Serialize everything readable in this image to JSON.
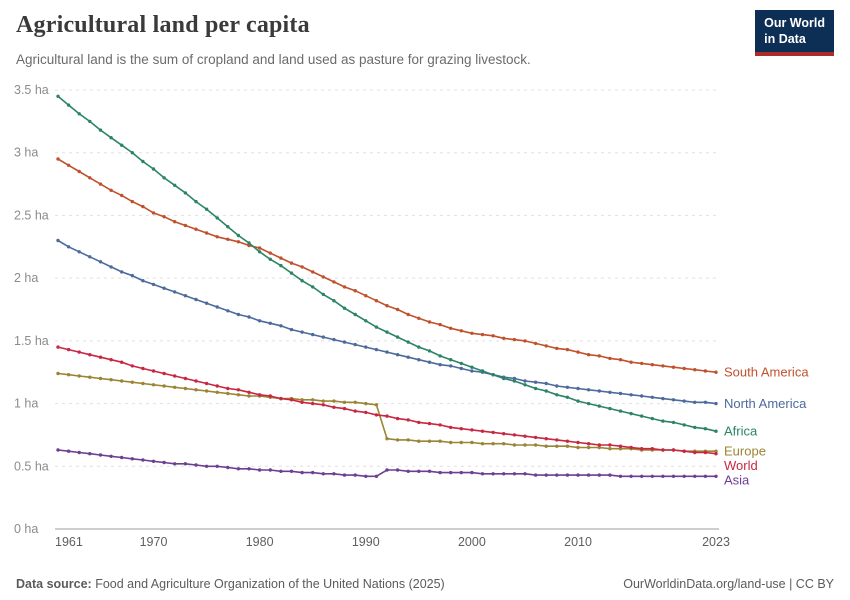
{
  "header": {
    "title": "Agricultural land per capita",
    "subtitle": "Agricultural land is the sum of cropland and land used as pasture for grazing livestock.",
    "logo": {
      "line1": "Our World",
      "line2": "in Data",
      "bg_color": "#0d2e55",
      "accent_color": "#a92e28"
    }
  },
  "footer": {
    "source_label": "Data source:",
    "source_text": " Food and Agriculture Organization of the United Nations (2025)",
    "credit": "OurWorldinData.org/land-use | CC BY"
  },
  "chart_data": {
    "type": "line",
    "title": "Agricultural land per capita",
    "unit": "ha",
    "ylim": [
      0,
      3.5
    ],
    "grid": "horizontal dashed",
    "legend_position": "right-end-labels",
    "x_ticks": [
      1961,
      1970,
      1980,
      1990,
      2000,
      2010,
      2023
    ],
    "y_ticks": [
      {
        "value": 0,
        "label": "0 ha"
      },
      {
        "value": 0.5,
        "label": "0.5 ha"
      },
      {
        "value": 1,
        "label": "1 ha"
      },
      {
        "value": 1.5,
        "label": "1.5 ha"
      },
      {
        "value": 2,
        "label": "2 ha"
      },
      {
        "value": 2.5,
        "label": "2.5 ha"
      },
      {
        "value": 3,
        "label": "3 ha"
      },
      {
        "value": 3.5,
        "label": "3.5 ha"
      }
    ],
    "x": [
      1961,
      1962,
      1963,
      1964,
      1965,
      1966,
      1967,
      1968,
      1969,
      1970,
      1971,
      1972,
      1973,
      1974,
      1975,
      1976,
      1977,
      1978,
      1979,
      1980,
      1981,
      1982,
      1983,
      1984,
      1985,
      1986,
      1987,
      1988,
      1989,
      1990,
      1991,
      1992,
      1993,
      1994,
      1995,
      1996,
      1997,
      1998,
      1999,
      2000,
      2001,
      2002,
      2003,
      2004,
      2005,
      2006,
      2007,
      2008,
      2009,
      2010,
      2011,
      2012,
      2013,
      2014,
      2015,
      2016,
      2017,
      2018,
      2019,
      2020,
      2021,
      2022,
      2023
    ],
    "series": [
      {
        "name": "South America",
        "color": "#C0512C",
        "values": [
          2.95,
          2.9,
          2.85,
          2.8,
          2.75,
          2.7,
          2.66,
          2.61,
          2.57,
          2.52,
          2.49,
          2.45,
          2.42,
          2.39,
          2.36,
          2.33,
          2.31,
          2.29,
          2.26,
          2.24,
          2.2,
          2.16,
          2.12,
          2.09,
          2.05,
          2.01,
          1.97,
          1.93,
          1.9,
          1.86,
          1.82,
          1.78,
          1.75,
          1.71,
          1.68,
          1.65,
          1.63,
          1.6,
          1.58,
          1.56,
          1.55,
          1.54,
          1.52,
          1.51,
          1.5,
          1.48,
          1.46,
          1.44,
          1.43,
          1.41,
          1.39,
          1.38,
          1.36,
          1.35,
          1.33,
          1.32,
          1.31,
          1.3,
          1.29,
          1.28,
          1.27,
          1.26,
          1.25
        ]
      },
      {
        "name": "North America",
        "color": "#4C6A9C",
        "values": [
          2.3,
          2.25,
          2.21,
          2.17,
          2.13,
          2.09,
          2.05,
          2.02,
          1.98,
          1.95,
          1.92,
          1.89,
          1.86,
          1.83,
          1.8,
          1.77,
          1.74,
          1.71,
          1.69,
          1.66,
          1.64,
          1.62,
          1.59,
          1.57,
          1.55,
          1.53,
          1.51,
          1.49,
          1.47,
          1.45,
          1.43,
          1.41,
          1.39,
          1.37,
          1.35,
          1.33,
          1.31,
          1.3,
          1.28,
          1.26,
          1.25,
          1.23,
          1.21,
          1.2,
          1.18,
          1.17,
          1.16,
          1.14,
          1.13,
          1.12,
          1.11,
          1.1,
          1.09,
          1.08,
          1.07,
          1.06,
          1.05,
          1.04,
          1.03,
          1.02,
          1.01,
          1.01,
          1.0
        ]
      },
      {
        "name": "Africa",
        "color": "#2C8465",
        "values": [
          3.45,
          3.38,
          3.31,
          3.25,
          3.18,
          3.12,
          3.06,
          3.0,
          2.93,
          2.87,
          2.8,
          2.74,
          2.68,
          2.61,
          2.55,
          2.48,
          2.41,
          2.34,
          2.28,
          2.21,
          2.15,
          2.1,
          2.04,
          1.98,
          1.93,
          1.87,
          1.82,
          1.76,
          1.71,
          1.66,
          1.61,
          1.57,
          1.53,
          1.49,
          1.45,
          1.42,
          1.38,
          1.35,
          1.32,
          1.29,
          1.26,
          1.23,
          1.2,
          1.18,
          1.15,
          1.12,
          1.1,
          1.07,
          1.05,
          1.02,
          1.0,
          0.98,
          0.96,
          0.94,
          0.92,
          0.9,
          0.88,
          0.86,
          0.85,
          0.83,
          0.81,
          0.8,
          0.78
        ]
      },
      {
        "name": "Europe",
        "color": "#9B8434",
        "values": [
          1.24,
          1.23,
          1.22,
          1.21,
          1.2,
          1.19,
          1.18,
          1.17,
          1.16,
          1.15,
          1.14,
          1.13,
          1.12,
          1.11,
          1.1,
          1.09,
          1.08,
          1.07,
          1.06,
          1.06,
          1.05,
          1.04,
          1.04,
          1.03,
          1.03,
          1.02,
          1.02,
          1.01,
          1.01,
          1.0,
          0.99,
          0.72,
          0.71,
          0.71,
          0.7,
          0.7,
          0.7,
          0.69,
          0.69,
          0.69,
          0.68,
          0.68,
          0.68,
          0.67,
          0.67,
          0.67,
          0.66,
          0.66,
          0.66,
          0.65,
          0.65,
          0.65,
          0.64,
          0.64,
          0.64,
          0.63,
          0.63,
          0.63,
          0.63,
          0.62,
          0.62,
          0.62,
          0.62
        ]
      },
      {
        "name": "World",
        "color": "#C82741",
        "values": [
          1.45,
          1.43,
          1.41,
          1.39,
          1.37,
          1.35,
          1.33,
          1.3,
          1.28,
          1.26,
          1.24,
          1.22,
          1.2,
          1.18,
          1.16,
          1.14,
          1.12,
          1.11,
          1.09,
          1.07,
          1.06,
          1.04,
          1.03,
          1.01,
          1.0,
          0.99,
          0.97,
          0.96,
          0.94,
          0.93,
          0.91,
          0.9,
          0.88,
          0.87,
          0.85,
          0.84,
          0.83,
          0.81,
          0.8,
          0.79,
          0.78,
          0.77,
          0.76,
          0.75,
          0.74,
          0.73,
          0.72,
          0.71,
          0.7,
          0.69,
          0.68,
          0.67,
          0.67,
          0.66,
          0.65,
          0.64,
          0.64,
          0.63,
          0.63,
          0.62,
          0.61,
          0.61,
          0.6
        ]
      },
      {
        "name": "Asia",
        "color": "#6D3E91",
        "values": [
          0.63,
          0.62,
          0.61,
          0.6,
          0.59,
          0.58,
          0.57,
          0.56,
          0.55,
          0.54,
          0.53,
          0.52,
          0.52,
          0.51,
          0.5,
          0.5,
          0.49,
          0.48,
          0.48,
          0.47,
          0.47,
          0.46,
          0.46,
          0.45,
          0.45,
          0.44,
          0.44,
          0.43,
          0.43,
          0.42,
          0.42,
          0.47,
          0.47,
          0.46,
          0.46,
          0.46,
          0.45,
          0.45,
          0.45,
          0.45,
          0.44,
          0.44,
          0.44,
          0.44,
          0.44,
          0.43,
          0.43,
          0.43,
          0.43,
          0.43,
          0.43,
          0.43,
          0.43,
          0.42,
          0.42,
          0.42,
          0.42,
          0.42,
          0.42,
          0.42,
          0.42,
          0.42,
          0.42
        ]
      }
    ]
  }
}
